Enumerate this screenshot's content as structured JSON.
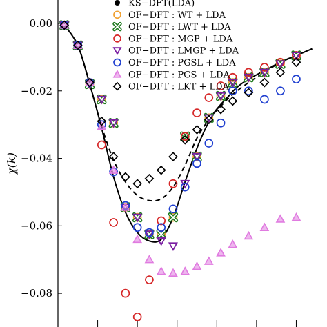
{
  "chart_data": {
    "type": "scatter",
    "ylabel": "χ(k)",
    "ylim": [
      -0.09,
      0.009
    ],
    "xlim": [
      0.0,
      3.3
    ],
    "yticks": [
      0.0,
      -0.02,
      -0.04,
      -0.06,
      -0.08
    ],
    "ytick_labels": [
      "0.00",
      "−0.02",
      "−0.04",
      "−0.06",
      "−0.08"
    ],
    "xticks": [
      0.5,
      1.0,
      1.5,
      2.0,
      2.5,
      3.0
    ],
    "legend_placement": "top-right",
    "colors": {
      "wt": "#f0a030",
      "lwt": "#1f7a1f",
      "mgp": "#d62728",
      "lmgp": "#7b1fa2",
      "pgsl": "#1f3fd0",
      "pgs": "#e07be0",
      "lkt": "#000000"
    },
    "series": [
      {
        "name": "KS−DFT(LDA)",
        "kind": "solid",
        "x": [
          0.08,
          0.25,
          0.4,
          0.55,
          0.7,
          0.85,
          1.0,
          1.15,
          1.3,
          1.45,
          1.6,
          1.75,
          1.85,
          1.95,
          2.05,
          2.15,
          2.25,
          2.4,
          2.6,
          2.8,
          3.0,
          3.2
        ],
        "y": [
          -0.0005,
          -0.0065,
          -0.018,
          -0.031,
          -0.0455,
          -0.056,
          -0.062,
          -0.0645,
          -0.064,
          -0.0575,
          -0.047,
          -0.037,
          -0.0315,
          -0.027,
          -0.024,
          -0.0215,
          -0.019,
          -0.0165,
          -0.014,
          -0.0115,
          -0.0095,
          -0.0075
        ]
      },
      {
        "name": "dashed",
        "kind": "dashed",
        "x": [
          0.08,
          0.25,
          0.4,
          0.55,
          0.7,
          0.85,
          1.0,
          1.15,
          1.3,
          1.45,
          1.6,
          1.75,
          1.9,
          2.05,
          2.2,
          2.4,
          2.6,
          2.8,
          3.0,
          3.2
        ],
        "y": [
          -0.0005,
          -0.0065,
          -0.018,
          -0.0305,
          -0.0405,
          -0.047,
          -0.051,
          -0.0525,
          -0.052,
          -0.0485,
          -0.042,
          -0.034,
          -0.0285,
          -0.0245,
          -0.021,
          -0.0175,
          -0.0145,
          -0.0115,
          -0.0095,
          -0.0075
        ]
      },
      {
        "name": "OF−DFT : WT + LDA",
        "marker": "circle",
        "color_key": "wt",
        "x": [
          0.08,
          0.25,
          0.4,
          0.55,
          0.7,
          0.85,
          1.0,
          1.15,
          1.3,
          1.45,
          1.6,
          1.75,
          1.9,
          2.05,
          2.2,
          2.4,
          2.6,
          2.8,
          3.0
        ],
        "y": [
          -0.0005,
          -0.0065,
          -0.018,
          -0.0225,
          -0.0295,
          -0.0545,
          -0.0575,
          -0.0625,
          -0.0625,
          -0.0575,
          -0.0335,
          -0.0395,
          -0.028,
          -0.0215,
          -0.0175,
          -0.016,
          -0.0145,
          -0.012,
          -0.0095
        ]
      },
      {
        "name": "OF−DFT : LWT + LDA",
        "marker": "x",
        "color_key": "lwt",
        "x": [
          0.08,
          0.25,
          0.4,
          0.55,
          0.7,
          0.85,
          1.0,
          1.15,
          1.3,
          1.45,
          1.6,
          1.75,
          1.9,
          2.05,
          2.2,
          2.4,
          2.6,
          2.8,
          3.0
        ],
        "y": [
          -0.0005,
          -0.0065,
          -0.018,
          -0.0225,
          -0.0295,
          -0.0545,
          -0.0575,
          -0.0625,
          -0.0625,
          -0.0575,
          -0.0335,
          -0.0395,
          -0.028,
          -0.0215,
          -0.0175,
          -0.016,
          -0.0145,
          -0.012,
          -0.0095
        ]
      },
      {
        "name": "OF−DFT : MGP + LDA",
        "marker": "circle",
        "color_key": "mgp",
        "x": [
          0.08,
          0.25,
          0.4,
          0.55,
          0.7,
          0.85,
          1.0,
          1.15,
          1.3,
          1.45,
          1.6,
          1.75,
          1.9,
          2.05,
          2.2,
          2.4,
          2.6,
          2.8,
          3.0
        ],
        "y": [
          -0.0005,
          -0.0065,
          -0.0175,
          -0.036,
          -0.059,
          -0.08,
          -0.087,
          -0.076,
          -0.0585,
          -0.0475,
          -0.0335,
          -0.0265,
          -0.022,
          -0.0185,
          -0.016,
          -0.0145,
          -0.013,
          -0.0115,
          -0.0095
        ]
      },
      {
        "name": "OF−DFT : LMGP + LDA",
        "marker": "triangle-down",
        "color_key": "lmgp",
        "x": [
          0.08,
          0.25,
          0.4,
          0.55,
          0.7,
          0.85,
          1.0,
          1.15,
          1.3,
          1.45,
          1.6,
          1.75,
          1.9,
          2.05,
          2.2,
          2.4,
          2.6,
          2.8,
          3.0
        ],
        "y": [
          -0.0005,
          -0.0065,
          -0.018,
          -0.0225,
          -0.0295,
          -0.0545,
          -0.0575,
          -0.0625,
          -0.0645,
          -0.066,
          -0.0475,
          -0.0395,
          -0.028,
          -0.0215,
          -0.0175,
          -0.016,
          -0.0145,
          -0.012,
          -0.0095
        ]
      },
      {
        "name": "OF−DFT : PGSL + LDA",
        "marker": "circle",
        "color_key": "pgsl",
        "x": [
          0.08,
          0.25,
          0.4,
          0.55,
          0.7,
          0.85,
          1.0,
          1.15,
          1.3,
          1.45,
          1.6,
          1.75,
          1.9,
          2.05,
          2.2,
          2.4,
          2.6,
          2.8,
          3.0
        ],
        "y": [
          -0.0005,
          -0.0065,
          -0.0175,
          -0.03,
          -0.044,
          -0.054,
          -0.0605,
          -0.062,
          -0.0605,
          -0.055,
          -0.0485,
          -0.0415,
          -0.0355,
          -0.0295,
          -0.02,
          -0.02,
          -0.0225,
          -0.02,
          -0.0165
        ]
      },
      {
        "name": "OF−DFT : PGS + LDA",
        "marker": "triangle-up",
        "color_key": "pgs",
        "x": [
          0.08,
          0.25,
          0.4,
          0.55,
          0.7,
          0.85,
          1.0,
          1.15,
          1.3,
          1.45,
          1.6,
          1.75,
          1.9,
          2.05,
          2.2,
          2.4,
          2.6,
          2.8,
          3.0
        ],
        "y": [
          -0.0005,
          -0.0065,
          -0.0175,
          -0.0305,
          -0.0435,
          -0.0545,
          -0.064,
          -0.07,
          -0.0735,
          -0.074,
          -0.0735,
          -0.072,
          -0.0705,
          -0.068,
          -0.0655,
          -0.063,
          -0.0605,
          -0.058,
          -0.0575
        ]
      },
      {
        "name": "OF−DFT : LKT + LDA",
        "marker": "diamond",
        "color_key": "lkt",
        "x": [
          0.08,
          0.25,
          0.4,
          0.55,
          0.7,
          0.85,
          1.0,
          1.15,
          1.3,
          1.45,
          1.6,
          1.75,
          1.9,
          2.05,
          2.2,
          2.4,
          2.6,
          2.8,
          3.0
        ],
        "y": [
          -0.0005,
          -0.0065,
          -0.0175,
          -0.029,
          -0.0395,
          -0.0455,
          -0.0475,
          -0.046,
          -0.0435,
          -0.0395,
          -0.0345,
          -0.0315,
          -0.0285,
          -0.0255,
          -0.023,
          -0.0205,
          -0.0175,
          -0.0145,
          -0.0115
        ]
      }
    ]
  }
}
